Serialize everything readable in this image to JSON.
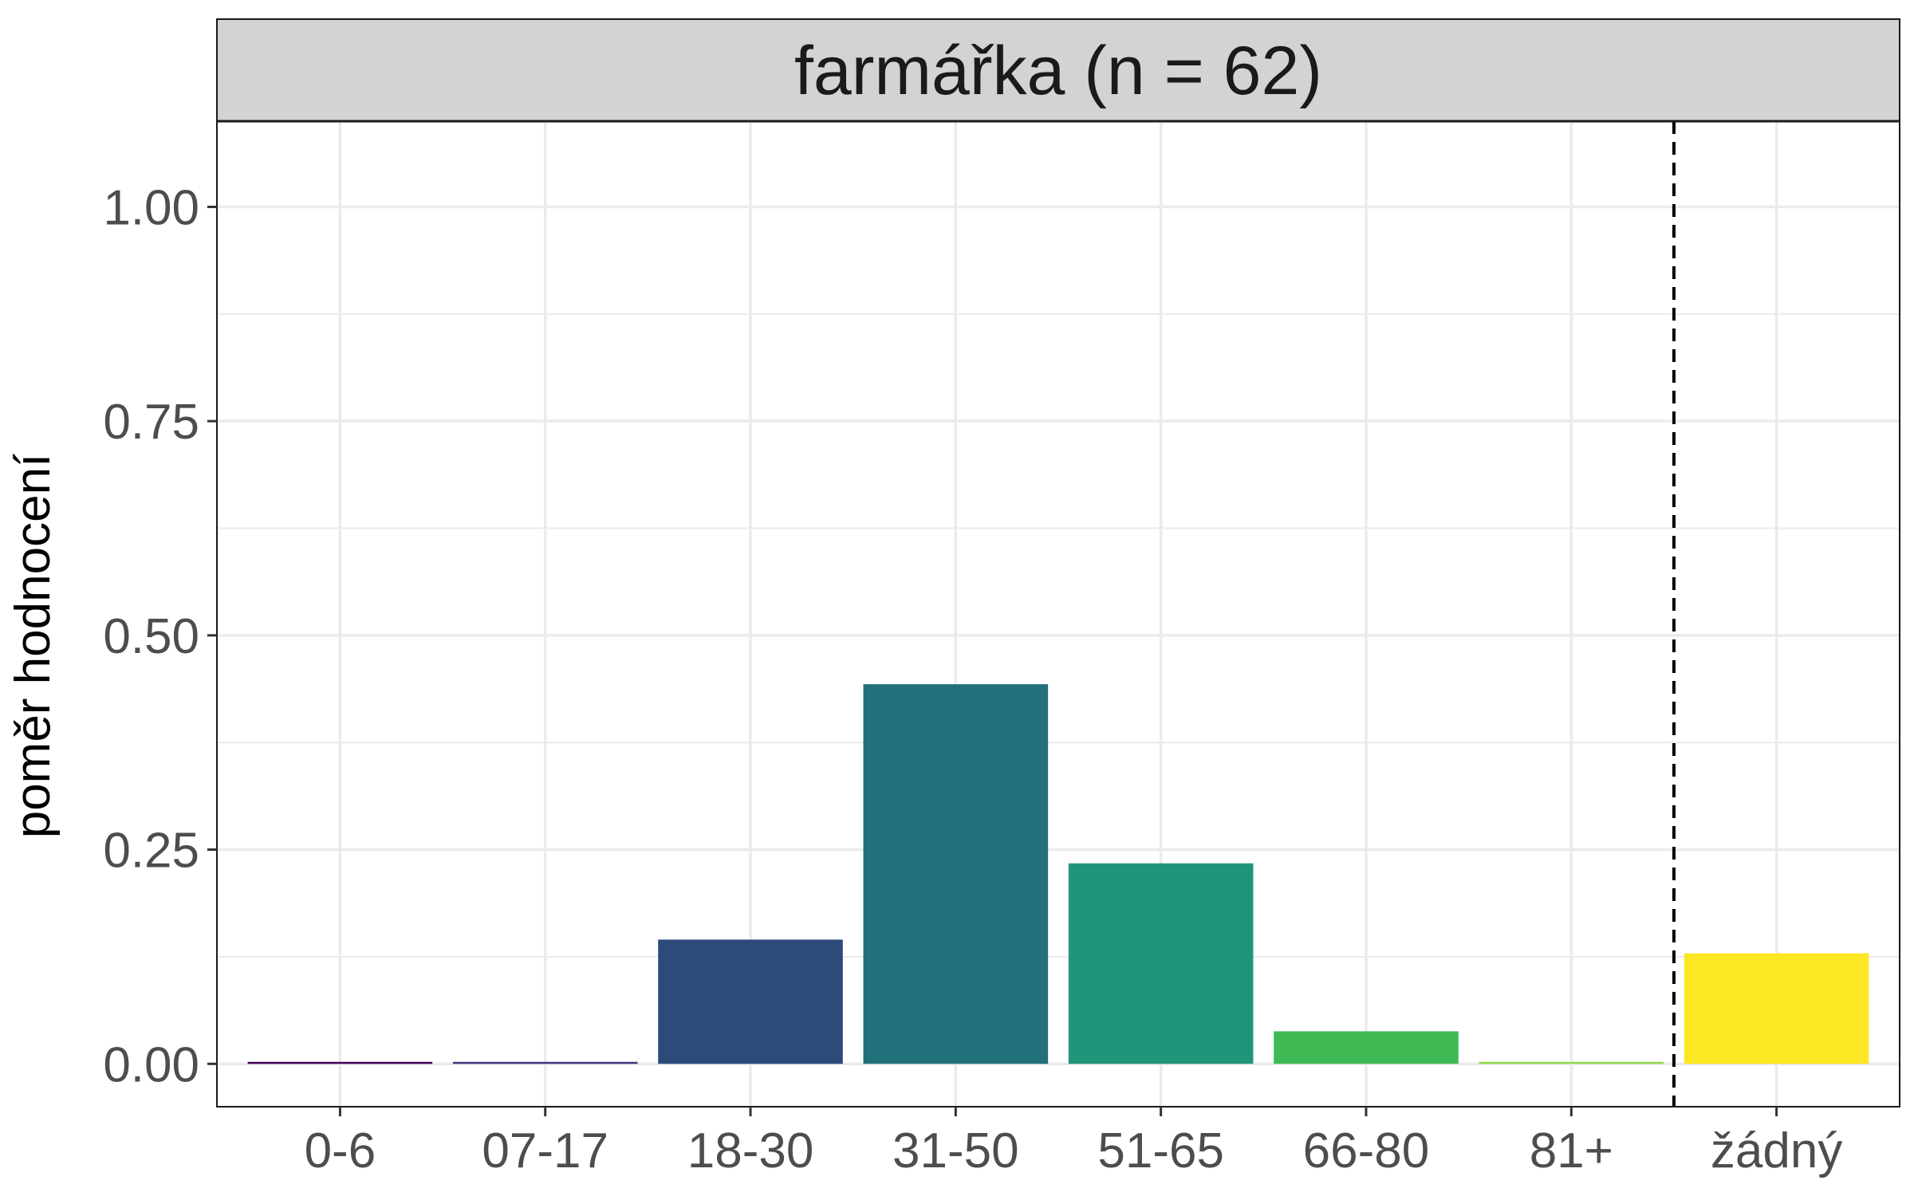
{
  "chart_data": {
    "type": "bar",
    "title": "farmářka (n = 62)",
    "xlabel": "",
    "ylabel": "poměr hodnocení",
    "categories": [
      "0-6",
      "07-17",
      "18-30",
      "31-50",
      "51-65",
      "66-80",
      "81+",
      "žádný"
    ],
    "values": [
      0.0,
      0.0,
      0.145,
      0.443,
      0.234,
      0.038,
      0.0,
      0.129
    ],
    "colors": [
      "#440154",
      "#46337E",
      "#2C4A7A",
      "#21707A",
      "#21957A",
      "#3FBA55",
      "#8FD744",
      "#FDE725"
    ],
    "ylim": [
      -0.05,
      1.1
    ],
    "yticks": [
      0.0,
      0.25,
      0.5,
      0.75,
      1.0
    ],
    "ytick_labels": [
      "0.00",
      "0.25",
      "0.50",
      "0.75",
      "1.00"
    ],
    "reference_line": {
      "style": "dashed",
      "between": [
        "81+",
        "žádný"
      ]
    },
    "grid": true,
    "legend": "none",
    "facet_strip_color": "#D3D3D3"
  }
}
